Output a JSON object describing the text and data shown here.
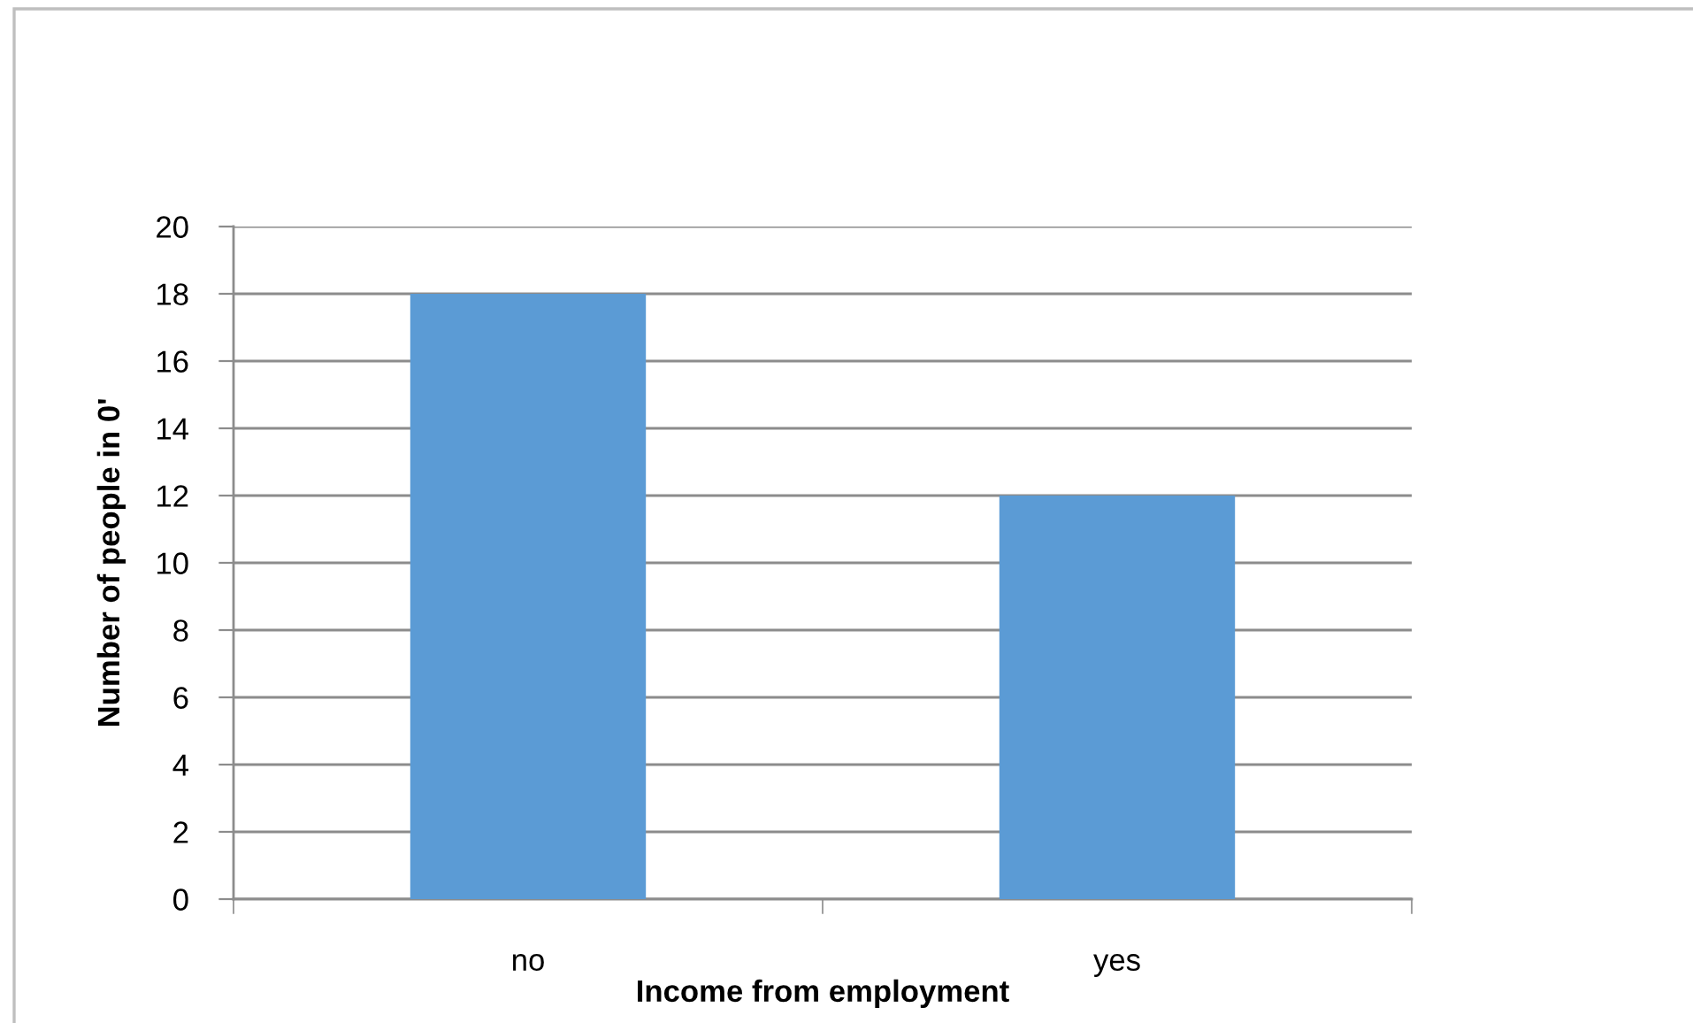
{
  "chart_data": {
    "type": "bar",
    "xlabel": "Income from employment",
    "ylabel": "Number of people in 0'",
    "categories": [
      "no",
      "yes"
    ],
    "values": [
      18,
      12
    ],
    "color": "#5b9bd5",
    "ylim": [
      0,
      20
    ],
    "yticks": [
      0,
      2,
      4,
      6,
      8,
      10,
      12,
      14,
      16,
      18,
      20
    ],
    "grid": "y"
  }
}
